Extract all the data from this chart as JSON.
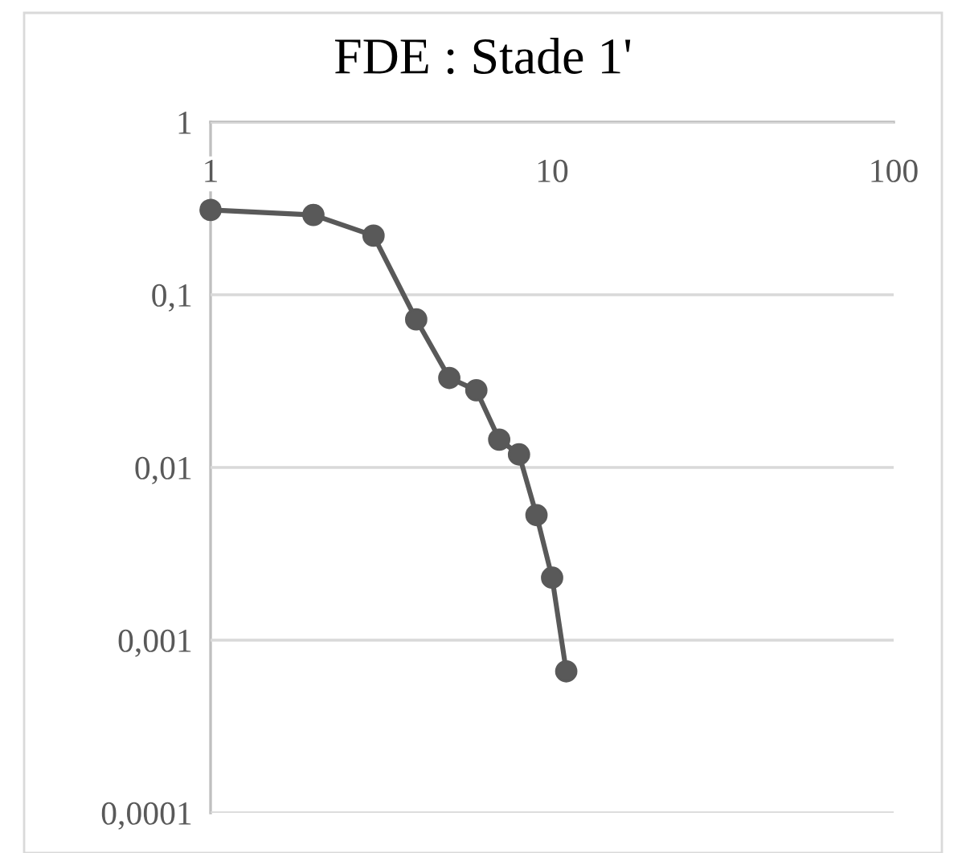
{
  "chart_data": {
    "type": "line",
    "title": "FDE : Stade 1'",
    "x": [
      1,
      2,
      3,
      4,
      5,
      6,
      7,
      8,
      9,
      10,
      11
    ],
    "series": [
      {
        "color": "#595959",
        "values": [
          0.31,
          0.29,
          0.22,
          0.072,
          0.033,
          0.028,
          0.0145,
          0.0119,
          0.0053,
          0.0023,
          0.00066
        ]
      }
    ],
    "log": "xy",
    "xlim": [
      1,
      100
    ],
    "xticks": [
      1,
      10,
      100
    ],
    "ylim": [
      0.0001,
      1
    ],
    "yticks": [
      {
        "value": 0.0001,
        "label": "0,0001"
      },
      {
        "value": 0.001,
        "label": "0,001"
      },
      {
        "value": 0.01,
        "label": "0,01"
      },
      {
        "value": 0.1,
        "label": "0,1"
      },
      {
        "value": 1,
        "label": "1"
      }
    ],
    "grid": "y",
    "marker": "circle",
    "line_style": "solid"
  }
}
